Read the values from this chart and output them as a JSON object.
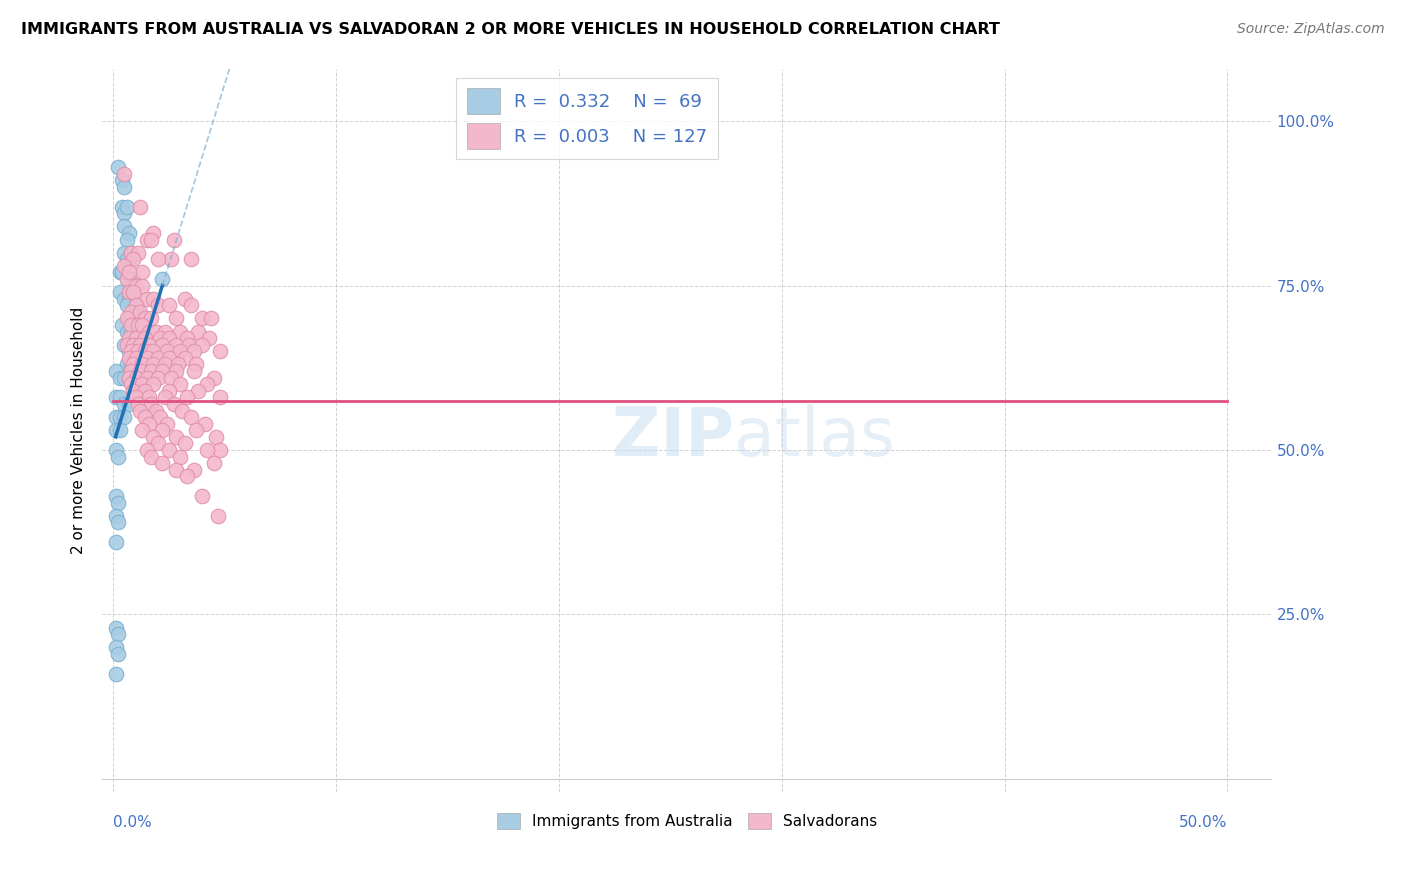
{
  "title": "IMMIGRANTS FROM AUSTRALIA VS SALVADORAN 2 OR MORE VEHICLES IN HOUSEHOLD CORRELATION CHART",
  "source": "Source: ZipAtlas.com",
  "ylabel": "2 or more Vehicles in Household",
  "xlim": [
    0.0,
    0.5
  ],
  "ylim": [
    0.0,
    1.05
  ],
  "legend_labels": [
    "Immigrants from Australia",
    "Salvadorans"
  ],
  "R_australia": 0.332,
  "N_australia": 69,
  "R_salvadoran": 0.003,
  "N_salvadoran": 127,
  "color_australia": "#a8cce4",
  "color_salvadoran": "#f4b8cc",
  "trendline_australia_color": "#2171b5",
  "trendline_salvadoran_color": "#e05080",
  "trendline_aus_x0": 0.001,
  "trendline_aus_y0": 0.52,
  "trendline_aus_x1": 0.022,
  "trendline_aus_y1": 0.75,
  "trendline_aus_dash_x0": 0.0,
  "trendline_aus_dash_y0": 0.435,
  "trendline_aus_dash_x1": 0.022,
  "trendline_aus_dash_y1": 0.75,
  "trendline_sal_y": 0.575,
  "australia_points": [
    [
      0.002,
      0.93
    ],
    [
      0.004,
      0.91
    ],
    [
      0.005,
      0.9
    ],
    [
      0.004,
      0.87
    ],
    [
      0.005,
      0.86
    ],
    [
      0.006,
      0.87
    ],
    [
      0.005,
      0.84
    ],
    [
      0.007,
      0.83
    ],
    [
      0.006,
      0.82
    ],
    [
      0.005,
      0.8
    ],
    [
      0.008,
      0.8
    ],
    [
      0.007,
      0.79
    ],
    [
      0.006,
      0.79
    ],
    [
      0.003,
      0.77
    ],
    [
      0.004,
      0.77
    ],
    [
      0.006,
      0.76
    ],
    [
      0.009,
      0.76
    ],
    [
      0.008,
      0.75
    ],
    [
      0.003,
      0.74
    ],
    [
      0.005,
      0.73
    ],
    [
      0.007,
      0.73
    ],
    [
      0.006,
      0.72
    ],
    [
      0.009,
      0.71
    ],
    [
      0.01,
      0.72
    ],
    [
      0.007,
      0.7
    ],
    [
      0.011,
      0.71
    ],
    [
      0.004,
      0.69
    ],
    [
      0.006,
      0.68
    ],
    [
      0.008,
      0.68
    ],
    [
      0.01,
      0.67
    ],
    [
      0.012,
      0.68
    ],
    [
      0.005,
      0.66
    ],
    [
      0.007,
      0.65
    ],
    [
      0.009,
      0.65
    ],
    [
      0.011,
      0.65
    ],
    [
      0.013,
      0.65
    ],
    [
      0.006,
      0.63
    ],
    [
      0.008,
      0.63
    ],
    [
      0.01,
      0.63
    ],
    [
      0.012,
      0.62
    ],
    [
      0.015,
      0.63
    ],
    [
      0.001,
      0.62
    ],
    [
      0.003,
      0.61
    ],
    [
      0.005,
      0.61
    ],
    [
      0.007,
      0.61
    ],
    [
      0.009,
      0.6
    ],
    [
      0.011,
      0.6
    ],
    [
      0.013,
      0.6
    ],
    [
      0.001,
      0.58
    ],
    [
      0.003,
      0.58
    ],
    [
      0.005,
      0.57
    ],
    [
      0.007,
      0.57
    ],
    [
      0.001,
      0.55
    ],
    [
      0.003,
      0.55
    ],
    [
      0.005,
      0.55
    ],
    [
      0.001,
      0.53
    ],
    [
      0.003,
      0.53
    ],
    [
      0.001,
      0.5
    ],
    [
      0.002,
      0.49
    ],
    [
      0.001,
      0.43
    ],
    [
      0.002,
      0.42
    ],
    [
      0.001,
      0.4
    ],
    [
      0.002,
      0.39
    ],
    [
      0.001,
      0.36
    ],
    [
      0.001,
      0.23
    ],
    [
      0.002,
      0.22
    ],
    [
      0.001,
      0.2
    ],
    [
      0.002,
      0.19
    ],
    [
      0.001,
      0.16
    ],
    [
      0.022,
      0.76
    ]
  ],
  "salvadoran_points": [
    [
      0.005,
      0.92
    ],
    [
      0.012,
      0.87
    ],
    [
      0.018,
      0.83
    ],
    [
      0.015,
      0.82
    ],
    [
      0.017,
      0.82
    ],
    [
      0.027,
      0.82
    ],
    [
      0.008,
      0.8
    ],
    [
      0.011,
      0.8
    ],
    [
      0.035,
      0.79
    ],
    [
      0.026,
      0.79
    ],
    [
      0.009,
      0.79
    ],
    [
      0.02,
      0.79
    ],
    [
      0.005,
      0.78
    ],
    [
      0.013,
      0.77
    ],
    [
      0.006,
      0.76
    ],
    [
      0.007,
      0.77
    ],
    [
      0.01,
      0.75
    ],
    [
      0.013,
      0.75
    ],
    [
      0.007,
      0.74
    ],
    [
      0.009,
      0.74
    ],
    [
      0.015,
      0.73
    ],
    [
      0.018,
      0.73
    ],
    [
      0.032,
      0.73
    ],
    [
      0.035,
      0.72
    ],
    [
      0.01,
      0.72
    ],
    [
      0.02,
      0.72
    ],
    [
      0.025,
      0.72
    ],
    [
      0.008,
      0.71
    ],
    [
      0.012,
      0.71
    ],
    [
      0.006,
      0.7
    ],
    [
      0.014,
      0.7
    ],
    [
      0.017,
      0.7
    ],
    [
      0.028,
      0.7
    ],
    [
      0.04,
      0.7
    ],
    [
      0.044,
      0.7
    ],
    [
      0.008,
      0.69
    ],
    [
      0.011,
      0.69
    ],
    [
      0.013,
      0.69
    ],
    [
      0.016,
      0.68
    ],
    [
      0.019,
      0.68
    ],
    [
      0.023,
      0.68
    ],
    [
      0.03,
      0.68
    ],
    [
      0.038,
      0.68
    ],
    [
      0.007,
      0.67
    ],
    [
      0.01,
      0.67
    ],
    [
      0.014,
      0.67
    ],
    [
      0.021,
      0.67
    ],
    [
      0.025,
      0.67
    ],
    [
      0.033,
      0.67
    ],
    [
      0.043,
      0.67
    ],
    [
      0.006,
      0.66
    ],
    [
      0.009,
      0.66
    ],
    [
      0.012,
      0.66
    ],
    [
      0.016,
      0.66
    ],
    [
      0.022,
      0.66
    ],
    [
      0.028,
      0.66
    ],
    [
      0.034,
      0.66
    ],
    [
      0.04,
      0.66
    ],
    [
      0.008,
      0.65
    ],
    [
      0.011,
      0.65
    ],
    [
      0.014,
      0.65
    ],
    [
      0.018,
      0.65
    ],
    [
      0.024,
      0.65
    ],
    [
      0.03,
      0.65
    ],
    [
      0.036,
      0.65
    ],
    [
      0.048,
      0.65
    ],
    [
      0.007,
      0.64
    ],
    [
      0.01,
      0.64
    ],
    [
      0.015,
      0.64
    ],
    [
      0.02,
      0.64
    ],
    [
      0.025,
      0.64
    ],
    [
      0.032,
      0.64
    ],
    [
      0.009,
      0.63
    ],
    [
      0.013,
      0.63
    ],
    [
      0.018,
      0.63
    ],
    [
      0.023,
      0.63
    ],
    [
      0.029,
      0.63
    ],
    [
      0.037,
      0.63
    ],
    [
      0.008,
      0.62
    ],
    [
      0.012,
      0.62
    ],
    [
      0.017,
      0.62
    ],
    [
      0.022,
      0.62
    ],
    [
      0.028,
      0.62
    ],
    [
      0.036,
      0.62
    ],
    [
      0.007,
      0.61
    ],
    [
      0.01,
      0.61
    ],
    [
      0.015,
      0.61
    ],
    [
      0.02,
      0.61
    ],
    [
      0.026,
      0.61
    ],
    [
      0.045,
      0.61
    ],
    [
      0.008,
      0.6
    ],
    [
      0.013,
      0.6
    ],
    [
      0.018,
      0.6
    ],
    [
      0.03,
      0.6
    ],
    [
      0.042,
      0.6
    ],
    [
      0.009,
      0.59
    ],
    [
      0.014,
      0.59
    ],
    [
      0.025,
      0.59
    ],
    [
      0.038,
      0.59
    ],
    [
      0.01,
      0.58
    ],
    [
      0.016,
      0.58
    ],
    [
      0.023,
      0.58
    ],
    [
      0.033,
      0.58
    ],
    [
      0.048,
      0.58
    ],
    [
      0.011,
      0.57
    ],
    [
      0.017,
      0.57
    ],
    [
      0.027,
      0.57
    ],
    [
      0.012,
      0.56
    ],
    [
      0.019,
      0.56
    ],
    [
      0.031,
      0.56
    ],
    [
      0.014,
      0.55
    ],
    [
      0.021,
      0.55
    ],
    [
      0.035,
      0.55
    ],
    [
      0.016,
      0.54
    ],
    [
      0.024,
      0.54
    ],
    [
      0.041,
      0.54
    ],
    [
      0.013,
      0.53
    ],
    [
      0.022,
      0.53
    ],
    [
      0.037,
      0.53
    ],
    [
      0.018,
      0.52
    ],
    [
      0.028,
      0.52
    ],
    [
      0.046,
      0.52
    ],
    [
      0.02,
      0.51
    ],
    [
      0.032,
      0.51
    ],
    [
      0.015,
      0.5
    ],
    [
      0.025,
      0.5
    ],
    [
      0.048,
      0.5
    ],
    [
      0.042,
      0.5
    ],
    [
      0.017,
      0.49
    ],
    [
      0.03,
      0.49
    ],
    [
      0.022,
      0.48
    ],
    [
      0.045,
      0.48
    ],
    [
      0.028,
      0.47
    ],
    [
      0.036,
      0.47
    ],
    [
      0.033,
      0.46
    ],
    [
      0.04,
      0.43
    ],
    [
      0.047,
      0.4
    ]
  ]
}
